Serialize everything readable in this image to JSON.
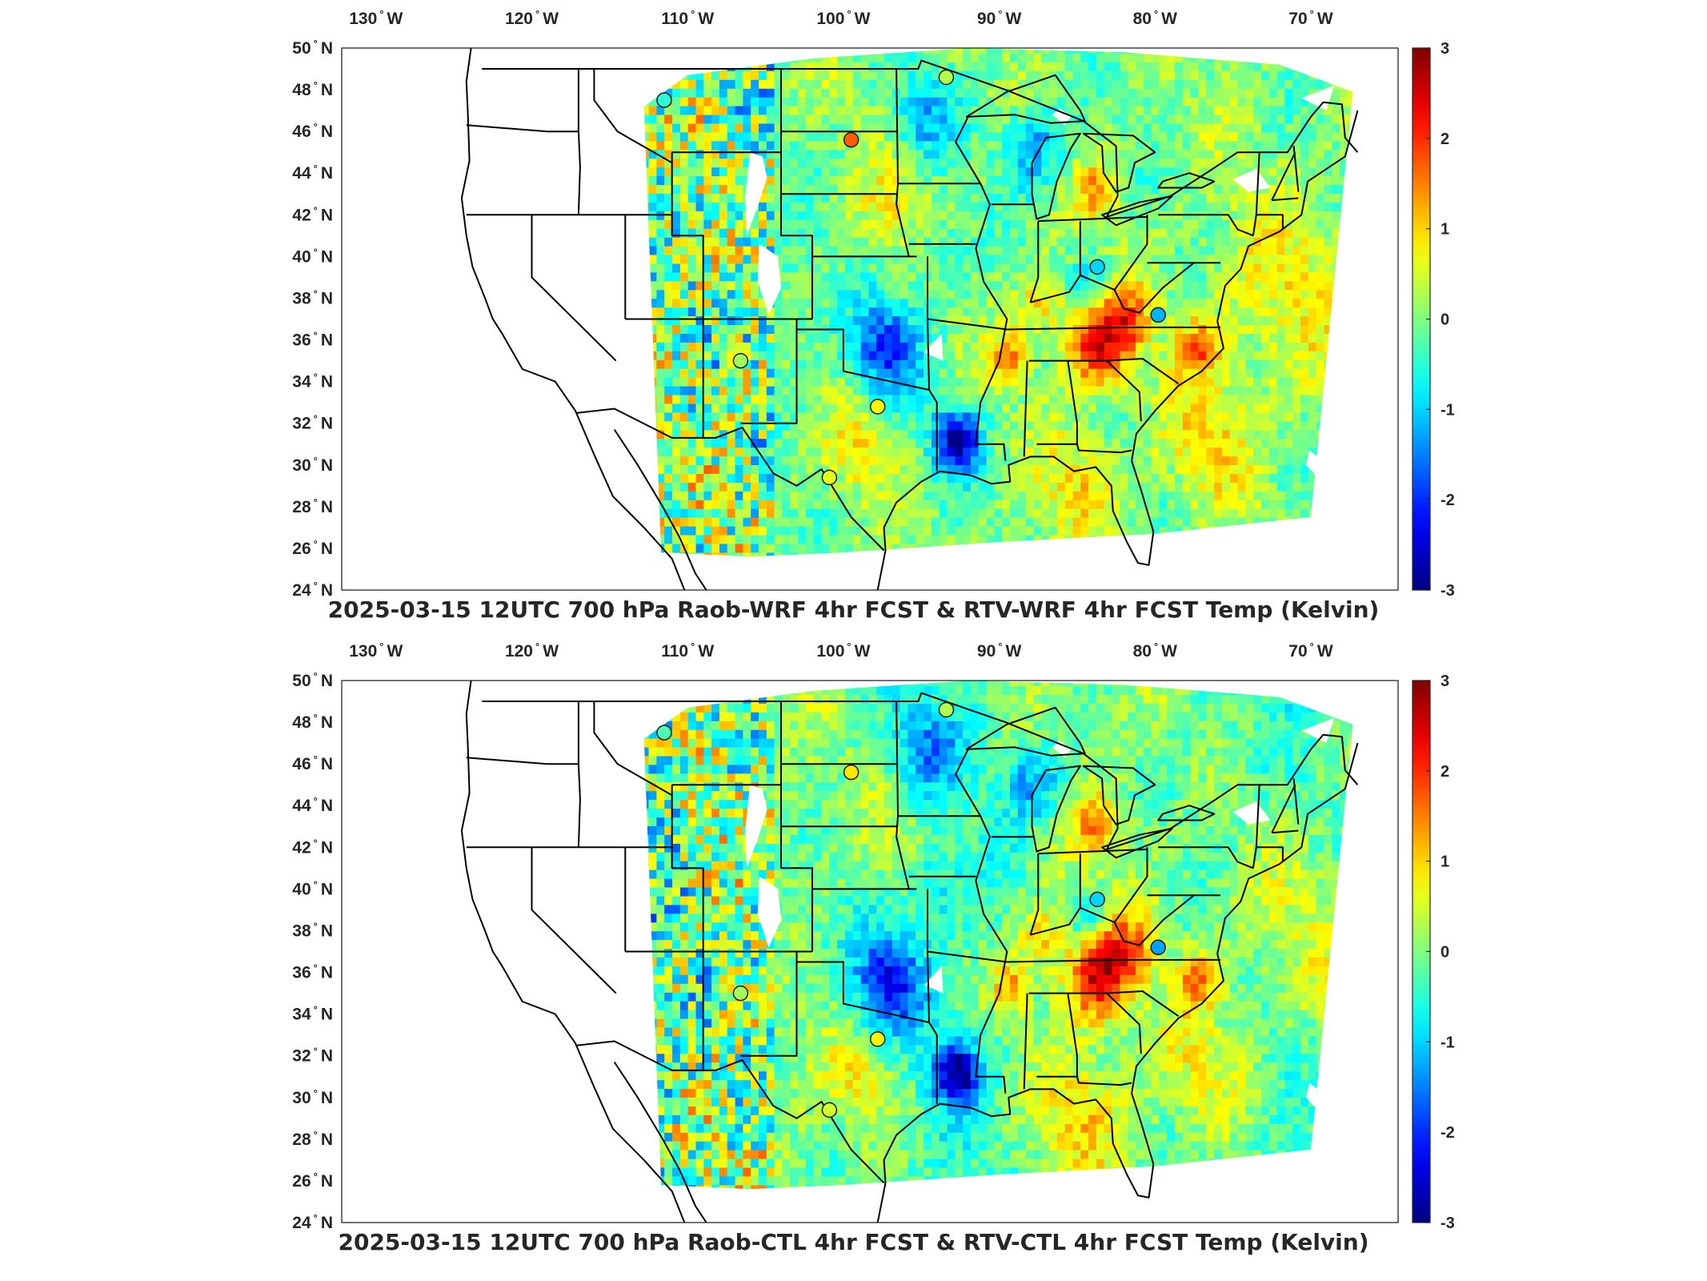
{
  "panels": [
    {
      "title": "2025-03-15 12UTC 700 hPa Raob-WRF 4hr FCST & RTV-WRF 4hr FCST Temp (Kelvin)",
      "stations": [
        {
          "lon": -111.5,
          "lat": 47.5,
          "value": -0.5
        },
        {
          "lon": -99.5,
          "lat": 45.6,
          "value": 1.7
        },
        {
          "lon": -83.7,
          "lat": 39.5,
          "value": -1.0
        },
        {
          "lon": -79.8,
          "lat": 37.2,
          "value": -1.2
        },
        {
          "lon": -106.6,
          "lat": 35.0,
          "value": 0.2
        },
        {
          "lon": -97.8,
          "lat": 32.8,
          "value": 0.8
        },
        {
          "lon": -100.9,
          "lat": 29.4,
          "value": 0.6
        },
        {
          "lon": -93.4,
          "lat": 48.6,
          "value": 0.3
        }
      ]
    },
    {
      "title": "2025-03-15 12UTC 700 hPa Raob-CTL 4hr FCST & RTV-CTL 4hr FCST Temp (Kelvin)",
      "stations": [
        {
          "lon": -111.5,
          "lat": 47.5,
          "value": -0.3
        },
        {
          "lon": -99.5,
          "lat": 45.6,
          "value": 0.9
        },
        {
          "lon": -83.7,
          "lat": 39.5,
          "value": -1.0
        },
        {
          "lon": -79.8,
          "lat": 37.2,
          "value": -1.3
        },
        {
          "lon": -106.6,
          "lat": 35.0,
          "value": 0.2
        },
        {
          "lon": -97.8,
          "lat": 32.8,
          "value": 0.8
        },
        {
          "lon": -100.9,
          "lat": 29.4,
          "value": 0.5
        },
        {
          "lon": -93.4,
          "lat": 48.6,
          "value": 0.3
        }
      ]
    }
  ],
  "lon_ticks": [
    {
      "value": -130,
      "deg": "130",
      "hemi": "W"
    },
    {
      "value": -120,
      "deg": "120",
      "hemi": "W"
    },
    {
      "value": -110,
      "deg": "110",
      "hemi": "W"
    },
    {
      "value": -100,
      "deg": "100",
      "hemi": "W"
    },
    {
      "value": -90,
      "deg": "90",
      "hemi": "W"
    },
    {
      "value": -80,
      "deg": "80",
      "hemi": "W"
    },
    {
      "value": -70,
      "deg": "70",
      "hemi": "W"
    }
  ],
  "lat_ticks": [
    {
      "value": 50,
      "deg": "50",
      "hemi": "N"
    },
    {
      "value": 48,
      "deg": "48",
      "hemi": "N"
    },
    {
      "value": 46,
      "deg": "46",
      "hemi": "N"
    },
    {
      "value": 44,
      "deg": "44",
      "hemi": "N"
    },
    {
      "value": 42,
      "deg": "42",
      "hemi": "N"
    },
    {
      "value": 40,
      "deg": "40",
      "hemi": "N"
    },
    {
      "value": 38,
      "deg": "38",
      "hemi": "N"
    },
    {
      "value": 36,
      "deg": "36",
      "hemi": "N"
    },
    {
      "value": 34,
      "deg": "34",
      "hemi": "N"
    },
    {
      "value": 32,
      "deg": "32",
      "hemi": "N"
    },
    {
      "value": 30,
      "deg": "30",
      "hemi": "N"
    },
    {
      "value": 28,
      "deg": "28",
      "hemi": "N"
    },
    {
      "value": 26,
      "deg": "26",
      "hemi": "N"
    },
    {
      "value": 24,
      "deg": "24",
      "hemi": "N"
    }
  ],
  "colorbar": {
    "min": -3,
    "max": 3,
    "colormap": "jet",
    "tick_labels": [
      "3",
      "2",
      "1",
      "0",
      "-1",
      "-2",
      "-3"
    ]
  },
  "colors": {
    "boundaries": "#000000",
    "station_outline": "#1a1a1a",
    "background": "#ffffff"
  }
}
